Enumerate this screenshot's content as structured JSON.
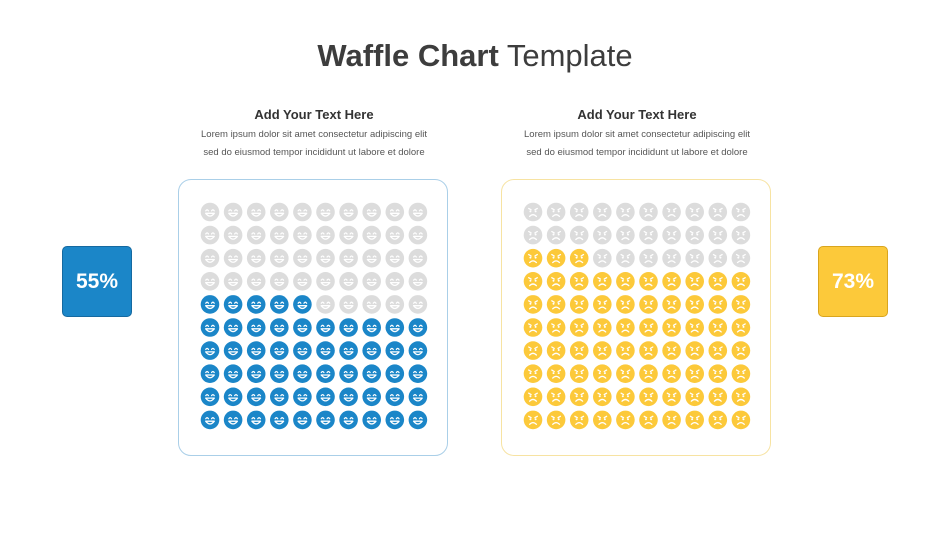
{
  "title": {
    "bold": "Waffle Chart",
    "light": "Template"
  },
  "panels": [
    {
      "heading": "Add Your Text Here",
      "line1": "Lorem ipsum dolor sit amet consectetur adipiscing elit",
      "line2": "sed do eiusmod tempor incididunt ut labore et dolore"
    },
    {
      "heading": "Add Your Text Here",
      "line1": "Lorem ipsum dolor sit amet consectetur adipiscing elit",
      "line2": "sed do eiusmod tempor incididunt ut labore et dolore"
    }
  ],
  "colors": {
    "blue": "#1b86c8",
    "blue_border": "#aacfe8",
    "yellow": "#fcc93a",
    "yellow_border": "#f7e3a2",
    "empty": "#dcdcdc"
  },
  "chart_data": [
    {
      "type": "waffle",
      "rows": 10,
      "columns": 10,
      "value": 55,
      "label": "55%",
      "icon": "smiley-face-icon",
      "fill": "#1b86c8",
      "empty": "#dcdcdc"
    },
    {
      "type": "waffle",
      "rows": 10,
      "columns": 10,
      "value": 73,
      "label": "73%",
      "icon": "sad-face-icon",
      "fill": "#fcc93a",
      "empty": "#dcdcdc"
    }
  ]
}
